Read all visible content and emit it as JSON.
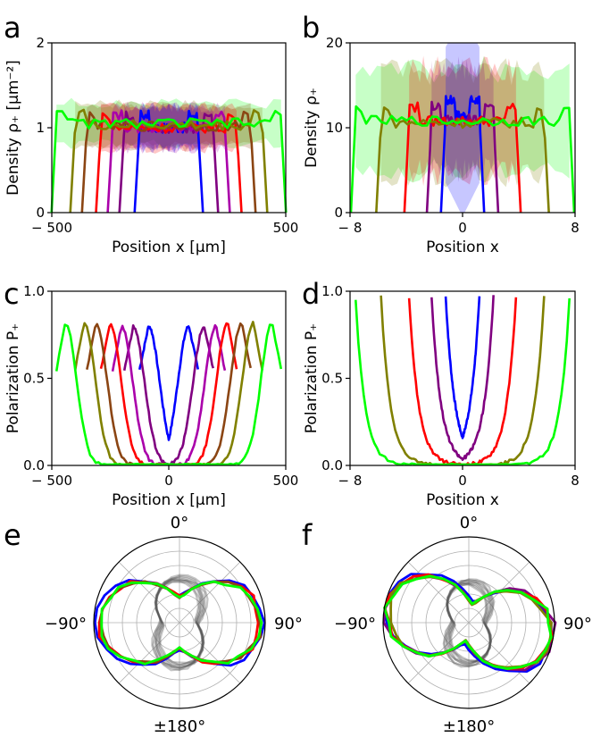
{
  "panels": [
    {
      "letter": "a"
    },
    {
      "letter": "b"
    },
    {
      "letter": "c"
    },
    {
      "letter": "d"
    },
    {
      "letter": "e"
    },
    {
      "letter": "f"
    }
  ],
  "series_colors": [
    "#0000ff",
    "#800080",
    "#aa00aa",
    "#ff0000",
    "#8b4513",
    "#808000",
    "#00ff00"
  ],
  "chart_data": [
    {
      "panel": "a",
      "type": "line",
      "xlabel": "Position x [µm]",
      "ylabel": "Density ρ₊ [µm⁻²]",
      "xlim": [
        -500,
        500
      ],
      "ylim": [
        0,
        2
      ],
      "xticks": [
        -500,
        500
      ],
      "xtick_labels": [
        "− 500",
        "500"
      ],
      "yticks": [
        0,
        1,
        2
      ],
      "ytick_labels": [
        "0",
        "1",
        "2"
      ],
      "shaded_bands": true,
      "series": [
        {
          "color": "#0000ff",
          "x_edges": [
            -125,
            125
          ],
          "plateau": 1.0
        },
        {
          "color": "#800080",
          "x_edges": [
            -190,
            190
          ],
          "plateau": 1.0
        },
        {
          "color": "#aa00aa",
          "x_edges": [
            -240,
            240
          ],
          "plateau": 1.0
        },
        {
          "color": "#ff0000",
          "x_edges": [
            -290,
            290
          ],
          "plateau": 1.0
        },
        {
          "color": "#8b4513",
          "x_edges": [
            -350,
            350
          ],
          "plateau": 1.02
        },
        {
          "color": "#808000",
          "x_edges": [
            -400,
            400
          ],
          "plateau": 1.03
        },
        {
          "color": "#00ff00",
          "x_edges": [
            -480,
            480
          ],
          "plateau": 1.05
        }
      ]
    },
    {
      "panel": "b",
      "type": "line",
      "xlabel": "Position x",
      "ylabel": "Density ρ₊",
      "xlim": [
        -8,
        8
      ],
      "ylim": [
        0,
        20
      ],
      "xticks": [
        -8,
        0,
        8
      ],
      "xtick_labels": [
        "− 8",
        "0",
        "8"
      ],
      "yticks": [
        0,
        10,
        20
      ],
      "ytick_labels": [
        "0",
        "10",
        "20"
      ],
      "shaded_bands": true,
      "series": [
        {
          "color": "#0000ff",
          "x_edges": [
            -1.2,
            1.2
          ],
          "plateau": 11.5
        },
        {
          "color": "#800080",
          "x_edges": [
            -2.2,
            2.2
          ],
          "plateau": 11.0
        },
        {
          "color": "#ff0000",
          "x_edges": [
            -3.8,
            3.8
          ],
          "plateau": 10.8
        },
        {
          "color": "#808000",
          "x_edges": [
            -5.8,
            5.8
          ],
          "plateau": 10.6
        },
        {
          "color": "#00ff00",
          "x_edges": [
            -7.6,
            7.6
          ],
          "plateau": 10.8
        }
      ]
    },
    {
      "panel": "c",
      "type": "line",
      "xlabel": "Position x [µm]",
      "ylabel": "Polarization P₊",
      "xlim": [
        -500,
        500
      ],
      "ylim": [
        0,
        1
      ],
      "xticks": [
        -500,
        0,
        500
      ],
      "xtick_labels": [
        "− 500",
        "0",
        "500"
      ],
      "yticks": [
        0,
        0.5,
        1
      ],
      "ytick_labels": [
        "0.0",
        "0.5",
        "1.0"
      ],
      "series": [
        {
          "color": "#0000ff",
          "x_edges": [
            -125,
            125
          ],
          "peak": 0.8
        },
        {
          "color": "#800080",
          "x_edges": [
            -190,
            190
          ],
          "peak": 0.8
        },
        {
          "color": "#aa00aa",
          "x_edges": [
            -240,
            240
          ],
          "peak": 0.8
        },
        {
          "color": "#ff0000",
          "x_edges": [
            -290,
            290
          ],
          "peak": 0.82
        },
        {
          "color": "#8b4513",
          "x_edges": [
            -350,
            350
          ],
          "peak": 0.82
        },
        {
          "color": "#808000",
          "x_edges": [
            -400,
            400
          ],
          "peak": 0.82
        },
        {
          "color": "#00ff00",
          "x_edges": [
            -480,
            480
          ],
          "peak": 0.82
        }
      ]
    },
    {
      "panel": "d",
      "type": "line",
      "xlabel": "Position x",
      "ylabel": "Polarization P₊",
      "xlim": [
        -8,
        8
      ],
      "ylim": [
        0,
        1
      ],
      "xticks": [
        -8,
        0,
        8
      ],
      "xtick_labels": [
        "− 8",
        "0",
        "8"
      ],
      "yticks": [
        0,
        0.5,
        1
      ],
      "ytick_labels": [
        "0.0",
        "0.5",
        "1.0"
      ],
      "series": [
        {
          "color": "#0000ff",
          "x_edges": [
            -1.2,
            1.2
          ],
          "peak": 0.97
        },
        {
          "color": "#800080",
          "x_edges": [
            -2.2,
            2.2
          ],
          "peak": 0.97
        },
        {
          "color": "#ff0000",
          "x_edges": [
            -3.8,
            3.8
          ],
          "peak": 0.97
        },
        {
          "color": "#808000",
          "x_edges": [
            -5.8,
            5.8
          ],
          "peak": 0.97
        },
        {
          "color": "#00ff00",
          "x_edges": [
            -7.6,
            7.6
          ],
          "peak": 0.95
        }
      ]
    },
    {
      "panel": "e",
      "type": "polar",
      "angle_labels": [
        "0°",
        "90°",
        "±180°",
        "−90°"
      ],
      "rings": 5,
      "reference_lobes": {
        "color": "#555555",
        "orientation_deg": 0,
        "major": 0.52,
        "minor": 0.2
      },
      "series": [
        {
          "color": "#0000ff",
          "orientation_deg": 90,
          "major": 0.98,
          "minor": 0.32
        },
        {
          "color": "#ff0000",
          "orientation_deg": 90,
          "major": 0.95,
          "minor": 0.31
        },
        {
          "color": "#8b4513",
          "orientation_deg": 90,
          "major": 0.94,
          "minor": 0.3
        },
        {
          "color": "#00ff00",
          "orientation_deg": 90,
          "major": 0.93,
          "minor": 0.3
        }
      ]
    },
    {
      "panel": "f",
      "type": "polar",
      "angle_labels": [
        "0°",
        "90°",
        "±180°",
        "−90°"
      ],
      "rings": 5,
      "reference_lobes": {
        "color": "#555555",
        "orientation_deg": 0,
        "major": 0.48,
        "minor": 0.18
      },
      "series": [
        {
          "color": "#0000ff",
          "orientation_deg": 103,
          "major": 0.98,
          "minor": 0.25
        },
        {
          "color": "#800080",
          "orientation_deg": 100,
          "major": 0.99,
          "minor": 0.22
        },
        {
          "color": "#ff0000",
          "orientation_deg": 100,
          "major": 0.97,
          "minor": 0.22
        },
        {
          "color": "#808000",
          "orientation_deg": 100,
          "major": 0.96,
          "minor": 0.21
        },
        {
          "color": "#00ff00",
          "orientation_deg": 100,
          "major": 0.97,
          "minor": 0.22
        }
      ]
    }
  ]
}
